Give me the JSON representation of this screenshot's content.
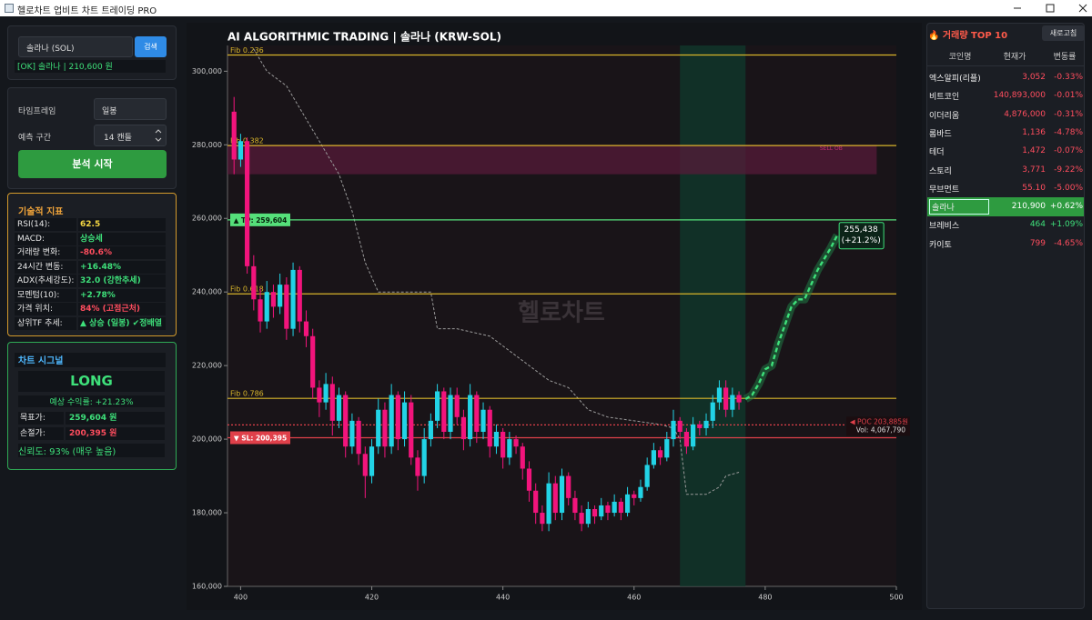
{
  "window": {
    "title": "헬로차트 업비트 차트 트레이딩 PRO"
  },
  "search": {
    "input": "솔라나 (SOL)",
    "button": "검색",
    "status": "[OK] 솔라나 | 210,600 원"
  },
  "settings": {
    "timeframe_label": "타임프레임",
    "timeframe": "일봉",
    "horizon_label": "예측 구간",
    "horizon": "14 캔들",
    "run_button": "분석 시작"
  },
  "indicators": {
    "title": "기술적 지표",
    "rows": [
      {
        "label": "RSI(14):",
        "value": "62.5",
        "color": "#f5d742"
      },
      {
        "label": "MACD:",
        "value": "상승세",
        "color": "#3ee07a"
      },
      {
        "label": "거래량 변화:",
        "value": "-80.6%",
        "color": "#ff4d5e"
      },
      {
        "label": "24시간 변동:",
        "value": "+16.48%",
        "color": "#3ee07a"
      },
      {
        "label": "ADX(추세강도):",
        "value": "32.0 (강한추세)",
        "color": "#3ee07a"
      },
      {
        "label": "모멘텀(10):",
        "value": "+2.78%",
        "color": "#3ee07a"
      },
      {
        "label": "가격 위치:",
        "value": "84% (고점근처)",
        "color": "#ff4d5e"
      },
      {
        "label": "상위TF 추세:",
        "value": "▲ 상승 (일봉) ✔정배열",
        "color": "#3ee07a"
      }
    ]
  },
  "signal": {
    "title": "차트 시그널",
    "signal": "LONG",
    "expected": "예상 수익률: +21.23%",
    "rows": [
      {
        "label": "목표가:",
        "value": "259,604 원"
      },
      {
        "label": "손절가:",
        "value": "200,395 원"
      }
    ],
    "confidence": "신뢰도: 93% (매우 높음)"
  },
  "chart_data": {
    "type": "candlestick",
    "title": "AI ALGORITHMIC TRADING | 솔라나 (KRW-SOL)",
    "watermark": "헬로차트",
    "xlim": [
      398,
      500
    ],
    "xticks": [
      400,
      420,
      440,
      460,
      480,
      500
    ],
    "ylim": [
      160000,
      307000
    ],
    "yticks": [
      {
        "value": 160000,
        "label": "160,000"
      },
      {
        "value": 180000,
        "label": "180,000"
      },
      {
        "value": 200000,
        "label": "200,000"
      },
      {
        "value": 220000,
        "label": "220,000"
      },
      {
        "value": 240000,
        "label": "240,000"
      },
      {
        "value": 260000,
        "label": "260,000"
      },
      {
        "value": 280000,
        "label": "280,000"
      },
      {
        "value": 300000,
        "label": "300,000"
      }
    ],
    "up_color": "#22d3e6",
    "down_color": "#f2147c",
    "candles": [
      [
        399,
        289000,
        293000,
        272000,
        276000
      ],
      [
        400,
        276000,
        283000,
        274000,
        281000
      ],
      [
        401,
        281000,
        282000,
        245000,
        247000
      ],
      [
        402,
        247000,
        250000,
        235000,
        238000
      ],
      [
        403,
        238000,
        241000,
        229000,
        232000
      ],
      [
        404,
        232000,
        243000,
        230000,
        240000
      ],
      [
        405,
        240000,
        242000,
        233000,
        236000
      ],
      [
        406,
        236000,
        245000,
        234000,
        242000
      ],
      [
        407,
        242000,
        244000,
        227000,
        230000
      ],
      [
        408,
        230000,
        248000,
        228000,
        246000
      ],
      [
        409,
        246000,
        247000,
        229000,
        232000
      ],
      [
        410,
        232000,
        235000,
        225000,
        228000
      ],
      [
        411,
        228000,
        230000,
        211000,
        214000
      ],
      [
        412,
        214000,
        216000,
        206000,
        210000
      ],
      [
        413,
        210000,
        218000,
        208000,
        215000
      ],
      [
        414,
        215000,
        217000,
        201000,
        205000
      ],
      [
        415,
        205000,
        214000,
        203000,
        212000
      ],
      [
        416,
        212000,
        213000,
        195000,
        198000
      ],
      [
        417,
        198000,
        207000,
        196000,
        205000
      ],
      [
        418,
        205000,
        206000,
        193000,
        196000
      ],
      [
        419,
        196000,
        198000,
        184000,
        190000
      ],
      [
        420,
        190000,
        200000,
        188000,
        198000
      ],
      [
        421,
        198000,
        211000,
        196000,
        208000
      ],
      [
        422,
        208000,
        210000,
        195000,
        198000
      ],
      [
        423,
        198000,
        215000,
        196000,
        212000
      ],
      [
        424,
        212000,
        213000,
        197000,
        200000
      ],
      [
        425,
        200000,
        213000,
        198000,
        210000
      ],
      [
        426,
        210000,
        212000,
        193000,
        195000
      ],
      [
        427,
        195000,
        197000,
        186000,
        190000
      ],
      [
        428,
        190000,
        203000,
        188000,
        200000
      ],
      [
        429,
        200000,
        207000,
        198000,
        205000
      ],
      [
        430,
        205000,
        215000,
        203000,
        213000
      ],
      [
        431,
        213000,
        214000,
        200000,
        202000
      ],
      [
        432,
        202000,
        214000,
        200000,
        212000
      ],
      [
        433,
        212000,
        214000,
        204000,
        206000
      ],
      [
        434,
        206000,
        208000,
        197000,
        200000
      ],
      [
        435,
        200000,
        215000,
        198000,
        212000
      ],
      [
        436,
        212000,
        213000,
        199000,
        202000
      ],
      [
        437,
        202000,
        210000,
        200000,
        208000
      ],
      [
        438,
        208000,
        209000,
        195000,
        198000
      ],
      [
        439,
        198000,
        204000,
        196000,
        202000
      ],
      [
        440,
        202000,
        203000,
        192000,
        195000
      ],
      [
        441,
        195000,
        202000,
        193000,
        200000
      ],
      [
        442,
        200000,
        201000,
        196000,
        198000
      ],
      [
        443,
        198000,
        199000,
        189000,
        192000
      ],
      [
        444,
        192000,
        194000,
        183000,
        186000
      ],
      [
        445,
        186000,
        188000,
        177000,
        180000
      ],
      [
        446,
        180000,
        182000,
        175000,
        177000
      ],
      [
        447,
        177000,
        191000,
        175000,
        188000
      ],
      [
        448,
        188000,
        190000,
        178000,
        180000
      ],
      [
        449,
        180000,
        192000,
        178000,
        190000
      ],
      [
        450,
        190000,
        191000,
        182000,
        184000
      ],
      [
        451,
        184000,
        186000,
        178000,
        180000
      ],
      [
        452,
        180000,
        182000,
        175000,
        177000
      ],
      [
        453,
        177000,
        183000,
        176000,
        181000
      ],
      [
        454,
        181000,
        182000,
        177000,
        179000
      ],
      [
        455,
        179000,
        184000,
        178000,
        182000
      ],
      [
        456,
        182000,
        183000,
        178000,
        180000
      ],
      [
        457,
        180000,
        185000,
        179000,
        183000
      ],
      [
        458,
        183000,
        184000,
        178000,
        180000
      ],
      [
        459,
        180000,
        187000,
        179000,
        185000
      ],
      [
        460,
        185000,
        186000,
        182000,
        184000
      ],
      [
        461,
        184000,
        189000,
        183000,
        187000
      ],
      [
        462,
        187000,
        195000,
        186000,
        193000
      ],
      [
        463,
        193000,
        199000,
        192000,
        197000
      ],
      [
        464,
        197000,
        198000,
        193000,
        195000
      ],
      [
        465,
        195000,
        202000,
        194000,
        200000
      ],
      [
        466,
        200000,
        208000,
        198000,
        205000
      ],
      [
        467,
        205000,
        206000,
        200000,
        202000
      ],
      [
        468,
        202000,
        203000,
        196000,
        198000
      ],
      [
        469,
        198000,
        206000,
        197000,
        204000
      ],
      [
        470,
        204000,
        205000,
        201000,
        203000
      ],
      [
        471,
        203000,
        207000,
        201000,
        205000
      ],
      [
        472,
        205000,
        212000,
        203000,
        210000
      ],
      [
        473,
        210000,
        216000,
        208000,
        214000
      ],
      [
        474,
        214000,
        216000,
        206000,
        208000
      ],
      [
        475,
        208000,
        214000,
        206000,
        212000
      ],
      [
        476,
        212000,
        213000,
        208000,
        210000
      ]
    ],
    "trail": {
      "x": [
        402,
        404,
        407,
        409,
        411,
        413,
        415,
        417,
        419,
        421,
        429,
        430,
        433,
        438,
        441,
        444,
        447,
        450,
        453,
        456,
        460,
        464,
        466,
        467,
        468,
        471,
        473,
        474,
        476
      ],
      "values": [
        306000,
        300000,
        296000,
        290000,
        284000,
        278000,
        272000,
        262000,
        248000,
        240000,
        240000,
        230000,
        230000,
        228000,
        224000,
        220000,
        216000,
        214000,
        208000,
        206000,
        205000,
        204000,
        203000,
        200000,
        185000,
        185000,
        187000,
        190000,
        191000
      ]
    },
    "prediction": {
      "x": [
        477,
        478,
        479,
        480,
        481,
        482,
        483,
        484,
        485,
        486,
        487,
        488,
        489,
        490,
        491
      ],
      "values": [
        210900,
        212000,
        215000,
        219000,
        220000,
        226000,
        231000,
        236000,
        238000,
        238000,
        242000,
        246000,
        249000,
        252000,
        255438
      ],
      "end_label": [
        "255,438",
        "(+21.2%)"
      ]
    },
    "forecast_zone": [
      467,
      477
    ],
    "sell_ob": {
      "label": "SELL OB",
      "x": [
        398,
        497
      ],
      "y": [
        272000,
        280000
      ]
    },
    "levels": [
      {
        "label": "Fib 0.236",
        "value": 304400,
        "kind": "fib"
      },
      {
        "label": "Fib 0.382",
        "value": 279800,
        "kind": "fib"
      },
      {
        "label": "Fib 0.618",
        "value": 239500,
        "kind": "fib"
      },
      {
        "label": "Fib 0.786",
        "value": 211100,
        "kind": "fib"
      },
      {
        "label": "▲ TP: 259,604",
        "value": 259604,
        "kind": "tp"
      },
      {
        "label": "▼ SL: 200,395",
        "value": 200395,
        "kind": "sl"
      },
      {
        "label": "◀ POC 203,885원",
        "sublabel": "Vol: 4,067,790",
        "value": 203885,
        "kind": "poc"
      }
    ]
  },
  "top10": {
    "title": "🔥 거래량 TOP 10",
    "refresh": "새로고침",
    "header": [
      "코인명",
      "현재가",
      "변동률"
    ],
    "selected": 7,
    "rows": [
      [
        "엑스알피(리플)",
        "3,052",
        "-0.33%"
      ],
      [
        "비트코인",
        "140,893,000",
        "-0.01%"
      ],
      [
        "이더리움",
        "4,876,000",
        "-0.31%"
      ],
      [
        "롬바드",
        "1,136",
        "-4.78%"
      ],
      [
        "테더",
        "1,472",
        "-0.07%"
      ],
      [
        "스토리",
        "3,771",
        "-9.22%"
      ],
      [
        "무브먼트",
        "55.10",
        "-5.00%"
      ],
      [
        "솔라나",
        "210,900",
        "+0.62%"
      ],
      [
        "브레비스",
        "464",
        "+1.09%"
      ],
      [
        "카이토",
        "799",
        "-4.65%"
      ]
    ]
  }
}
